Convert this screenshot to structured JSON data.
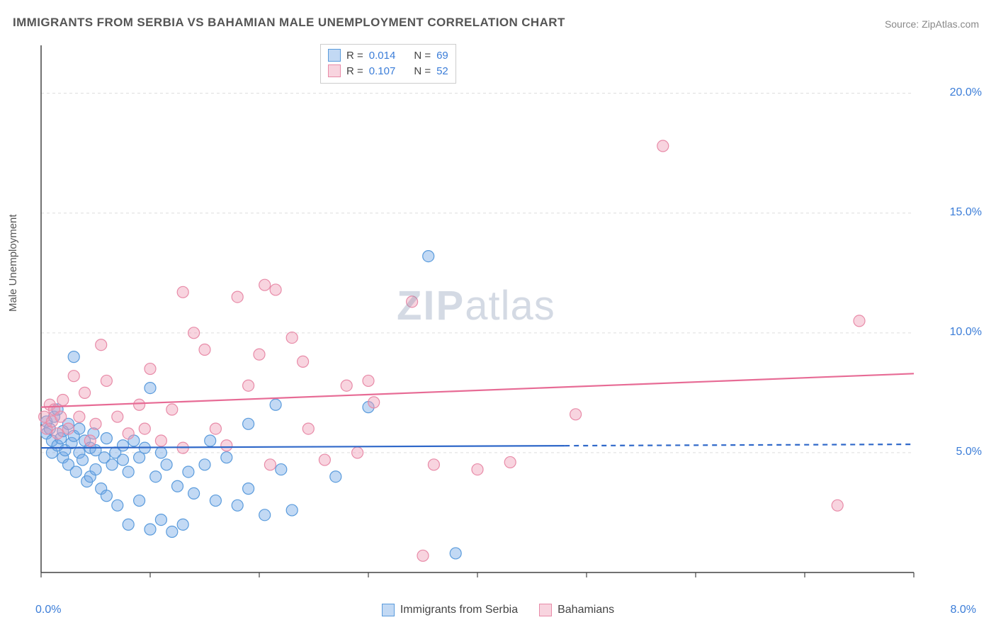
{
  "title": "IMMIGRANTS FROM SERBIA VS BAHAMIAN MALE UNEMPLOYMENT CORRELATION CHART",
  "source": "Source: ZipAtlas.com",
  "ylabel": "Male Unemployment",
  "watermark_zip": "ZIP",
  "watermark_atlas": "atlas",
  "chart": {
    "type": "scatter",
    "background_color": "#ffffff",
    "axis_line_color": "#444444",
    "grid_color": "#dddddd",
    "tick_label_color": "#3b7dd8",
    "tick_label_fontsize": 16,
    "xlim": [
      0.0,
      8.0
    ],
    "ylim": [
      0.0,
      22.0
    ],
    "yticks": [
      5.0,
      10.0,
      15.0,
      20.0
    ],
    "ytick_labels": [
      "5.0%",
      "10.0%",
      "15.0%",
      "20.0%"
    ],
    "xtick_positions": [
      0,
      1,
      2,
      3,
      4,
      5,
      6,
      7,
      8
    ],
    "x_min_label": "0.0%",
    "x_max_label": "8.0%",
    "marker_radius": 8,
    "marker_stroke_width": 1.2,
    "trend_line_width": 2.2,
    "series": [
      {
        "id": "serbia",
        "label": "Immigrants from Serbia",
        "fill_color": "rgba(120,170,230,0.45)",
        "stroke_color": "#5a9bdc",
        "trend_color": "#2f68c9",
        "R": "0.014",
        "N": "69",
        "trend": {
          "x1": 0.0,
          "y1": 5.2,
          "x2": 8.0,
          "y2": 5.35,
          "solid_until_x": 4.8
        },
        "points": [
          [
            0.05,
            5.8
          ],
          [
            0.05,
            6.3
          ],
          [
            0.08,
            6.0
          ],
          [
            0.1,
            5.5
          ],
          [
            0.1,
            5.0
          ],
          [
            0.12,
            6.5
          ],
          [
            0.15,
            5.3
          ],
          [
            0.15,
            6.8
          ],
          [
            0.18,
            5.6
          ],
          [
            0.2,
            4.8
          ],
          [
            0.2,
            5.9
          ],
          [
            0.22,
            5.1
          ],
          [
            0.25,
            6.2
          ],
          [
            0.25,
            4.5
          ],
          [
            0.28,
            5.4
          ],
          [
            0.3,
            9.0
          ],
          [
            0.3,
            5.7
          ],
          [
            0.32,
            4.2
          ],
          [
            0.35,
            5.0
          ],
          [
            0.35,
            6.0
          ],
          [
            0.38,
            4.7
          ],
          [
            0.4,
            5.5
          ],
          [
            0.42,
            3.8
          ],
          [
            0.45,
            5.2
          ],
          [
            0.45,
            4.0
          ],
          [
            0.48,
            5.8
          ],
          [
            0.5,
            4.3
          ],
          [
            0.5,
            5.1
          ],
          [
            0.55,
            3.5
          ],
          [
            0.58,
            4.8
          ],
          [
            0.6,
            5.6
          ],
          [
            0.6,
            3.2
          ],
          [
            0.65,
            4.5
          ],
          [
            0.68,
            5.0
          ],
          [
            0.7,
            2.8
          ],
          [
            0.75,
            4.7
          ],
          [
            0.75,
            5.3
          ],
          [
            0.8,
            2.0
          ],
          [
            0.8,
            4.2
          ],
          [
            0.85,
            5.5
          ],
          [
            0.9,
            3.0
          ],
          [
            0.9,
            4.8
          ],
          [
            0.95,
            5.2
          ],
          [
            1.0,
            1.8
          ],
          [
            1.0,
            7.7
          ],
          [
            1.05,
            4.0
          ],
          [
            1.1,
            2.2
          ],
          [
            1.1,
            5.0
          ],
          [
            1.15,
            4.5
          ],
          [
            1.2,
            1.7
          ],
          [
            1.25,
            3.6
          ],
          [
            1.3,
            2.0
          ],
          [
            1.35,
            4.2
          ],
          [
            1.4,
            3.3
          ],
          [
            1.5,
            4.5
          ],
          [
            1.55,
            5.5
          ],
          [
            1.6,
            3.0
          ],
          [
            1.7,
            4.8
          ],
          [
            1.8,
            2.8
          ],
          [
            1.9,
            6.2
          ],
          [
            1.9,
            3.5
          ],
          [
            2.05,
            2.4
          ],
          [
            2.15,
            7.0
          ],
          [
            2.2,
            4.3
          ],
          [
            2.3,
            2.6
          ],
          [
            2.7,
            4.0
          ],
          [
            3.0,
            6.9
          ],
          [
            3.55,
            13.2
          ],
          [
            3.8,
            0.8
          ]
        ]
      },
      {
        "id": "bahamians",
        "label": "Bahamians",
        "fill_color": "rgba(240,160,185,0.45)",
        "stroke_color": "#e88ba8",
        "trend_color": "#e76b95",
        "R": "0.107",
        "N": "52",
        "trend": {
          "x1": 0.0,
          "y1": 6.9,
          "x2": 8.0,
          "y2": 8.3,
          "solid_until_x": 8.0
        },
        "points": [
          [
            0.03,
            6.5
          ],
          [
            0.05,
            6.0
          ],
          [
            0.08,
            7.0
          ],
          [
            0.1,
            6.3
          ],
          [
            0.12,
            6.8
          ],
          [
            0.15,
            5.8
          ],
          [
            0.18,
            6.5
          ],
          [
            0.2,
            7.2
          ],
          [
            0.25,
            6.0
          ],
          [
            0.3,
            8.2
          ],
          [
            0.35,
            6.5
          ],
          [
            0.4,
            7.5
          ],
          [
            0.45,
            5.5
          ],
          [
            0.5,
            6.2
          ],
          [
            0.55,
            9.5
          ],
          [
            0.6,
            8.0
          ],
          [
            0.7,
            6.5
          ],
          [
            0.8,
            5.8
          ],
          [
            0.9,
            7.0
          ],
          [
            0.95,
            6.0
          ],
          [
            1.0,
            8.5
          ],
          [
            1.1,
            5.5
          ],
          [
            1.2,
            6.8
          ],
          [
            1.3,
            5.2
          ],
          [
            1.3,
            11.7
          ],
          [
            1.4,
            10.0
          ],
          [
            1.5,
            9.3
          ],
          [
            1.6,
            6.0
          ],
          [
            1.7,
            5.3
          ],
          [
            1.8,
            11.5
          ],
          [
            1.9,
            7.8
          ],
          [
            2.0,
            9.1
          ],
          [
            2.05,
            12.0
          ],
          [
            2.1,
            4.5
          ],
          [
            2.15,
            11.8
          ],
          [
            2.3,
            9.8
          ],
          [
            2.4,
            8.8
          ],
          [
            2.45,
            6.0
          ],
          [
            2.6,
            4.7
          ],
          [
            2.8,
            7.8
          ],
          [
            2.9,
            5.0
          ],
          [
            3.0,
            8.0
          ],
          [
            3.05,
            7.1
          ],
          [
            3.4,
            11.3
          ],
          [
            3.5,
            0.7
          ],
          [
            3.6,
            4.5
          ],
          [
            4.0,
            4.3
          ],
          [
            4.3,
            4.6
          ],
          [
            4.9,
            6.6
          ],
          [
            5.7,
            17.8
          ],
          [
            7.3,
            2.8
          ],
          [
            7.5,
            10.5
          ]
        ]
      }
    ],
    "legend_top": {
      "R_prefix": "R =",
      "N_prefix": "N ="
    },
    "legend_top_border": "#cccccc"
  }
}
